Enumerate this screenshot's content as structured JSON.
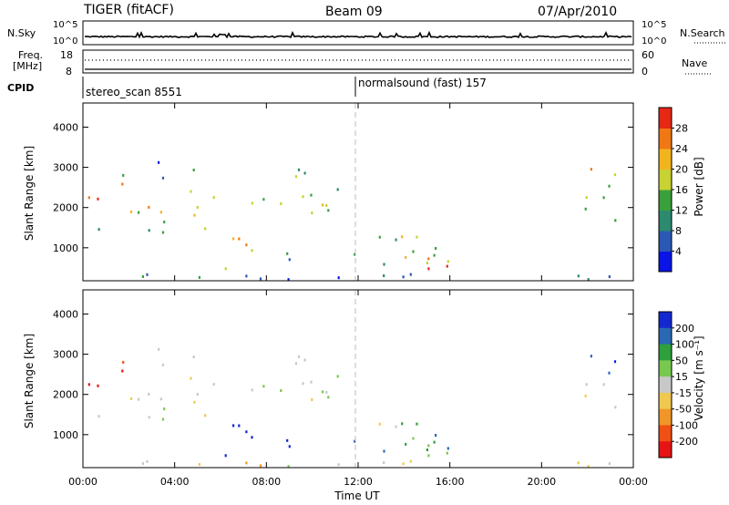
{
  "header": {
    "radar": "TIGER (fitACF)",
    "beam": "Beam 09",
    "date": "07/Apr/2010"
  },
  "sky_panel": {
    "left_label": "N.Sky",
    "left_ticks": [
      "10^5",
      "10^0"
    ],
    "right_ticks": [
      "10^5",
      "10^0"
    ],
    "right_label": "N.Search"
  },
  "freq_panel": {
    "left_label_1": "Freq.",
    "left_label_2": "[MHz]",
    "left_ticks": [
      "18",
      "8"
    ],
    "right_ticks": [
      "60",
      "0"
    ],
    "right_label": "Nave"
  },
  "cpid_panel": {
    "label": "CPID",
    "modes": [
      {
        "name": "stereo_scan 8551",
        "start_hour": 0
      },
      {
        "name": "normalsound (fast) 157",
        "start_hour": 12
      }
    ]
  },
  "chart_data": [
    {
      "type": "heatmap",
      "name": "power",
      "xlabel": "",
      "ylabel": "Slant Range [km]",
      "xlim": [
        0,
        24
      ],
      "ylim": [
        180,
        4600
      ],
      "yticks": [
        "1000",
        "2000",
        "3000",
        "4000"
      ],
      "ytick_values": [
        1000,
        2000,
        3000,
        4000
      ],
      "colorbar": {
        "label": "Power [dB]",
        "min": 0,
        "max": 32,
        "ticks": [
          "4",
          "8",
          "12",
          "16",
          "20",
          "24",
          "28"
        ],
        "tick_values": [
          4,
          8,
          12,
          16,
          20,
          24,
          28
        ],
        "colors": [
          "#0a14e6",
          "#2a58b4",
          "#2c8a6e",
          "#3aa03c",
          "#c8d232",
          "#f2b41e",
          "#f07814",
          "#e62814"
        ]
      }
    },
    {
      "type": "heatmap",
      "name": "velocity",
      "xlabel": "Time UT",
      "ylabel": "Slant Range [km]",
      "xlim": [
        0,
        24
      ],
      "ylim": [
        180,
        4600
      ],
      "xticks": [
        "00:00",
        "04:00",
        "08:00",
        "12:00",
        "16:00",
        "20:00",
        "00:00"
      ],
      "xtick_values": [
        0,
        4,
        8,
        12,
        16,
        20,
        24
      ],
      "yticks": [
        "1000",
        "2000",
        "3000",
        "4000"
      ],
      "ytick_values": [
        1000,
        2000,
        3000,
        4000
      ],
      "colorbar": {
        "label": "Velocity [m s⁻¹]",
        "ticks": [
          "200",
          "100",
          "50",
          "15",
          "-15",
          "-50",
          "-100",
          "-200"
        ],
        "colors": [
          "#1428d2",
          "#2a68b4",
          "#2ea03c",
          "#78c850",
          "#c8c8c8",
          "#f0c850",
          "#f09628",
          "#f05014",
          "#e61414"
        ]
      }
    }
  ]
}
